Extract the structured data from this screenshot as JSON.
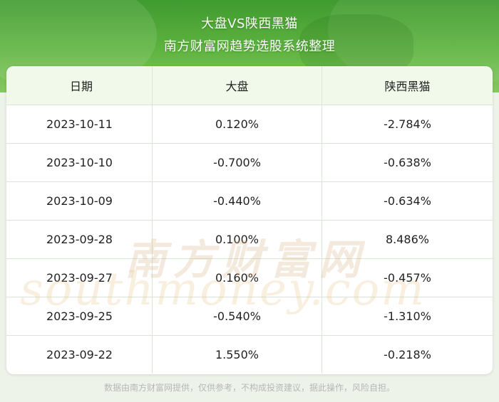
{
  "header": {
    "title": "大盘VS陕西黑猫",
    "subtitle": "南方财富网趋势选股系统整理"
  },
  "table": {
    "columns": [
      "日期",
      "大盘",
      "陕西黑猫"
    ],
    "rows": [
      [
        "2023-10-11",
        "0.120%",
        "-2.784%"
      ],
      [
        "2023-10-10",
        "-0.700%",
        "-0.638%"
      ],
      [
        "2023-10-09",
        "-0.440%",
        "-0.634%"
      ],
      [
        "2023-09-28",
        "0.100%",
        "8.486%"
      ],
      [
        "2023-09-27",
        "0.160%",
        "-0.457%"
      ],
      [
        "2023-09-25",
        "-0.540%",
        "-1.310%"
      ],
      [
        "2023-09-22",
        "1.550%",
        "-0.218%"
      ]
    ]
  },
  "watermark": {
    "chinese": "南方财富网",
    "english": "southmoney.com"
  },
  "footer": {
    "disclaimer": "数据由南方财富网提供，仅供参考，不构成投资建议，据此操作，风险自担。"
  },
  "colors": {
    "banner": "#5fb440",
    "header_row": "#f1faea",
    "border": "#d9e6d3"
  }
}
